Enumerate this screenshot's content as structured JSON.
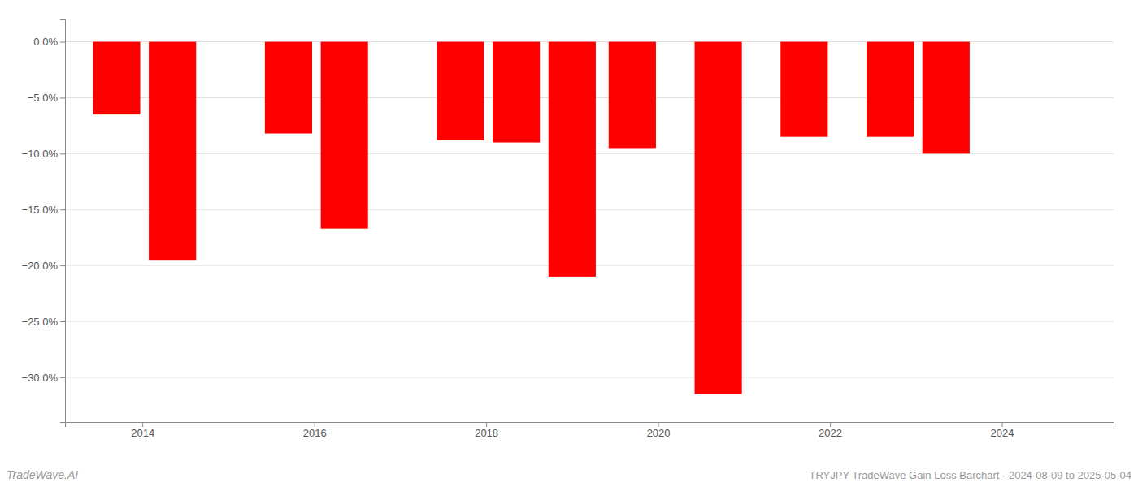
{
  "chart_data": {
    "type": "bar",
    "x": [
      2013.7,
      2014.35,
      2015.7,
      2016.35,
      2017.7,
      2018.35,
      2019.0,
      2019.7,
      2020.7,
      2021.7,
      2022.7,
      2023.35
    ],
    "values": [
      -6.5,
      -19.5,
      -8.2,
      -16.7,
      -8.8,
      -9.0,
      -21.0,
      -9.5,
      -31.5,
      -8.5,
      -8.5,
      -10.0
    ],
    "color": "#ff0000",
    "xlim": [
      2013.1,
      2025.3
    ],
    "xticks": [
      2014,
      2016,
      2018,
      2020,
      2022,
      2024
    ],
    "ylim": [
      -34,
      2.0
    ],
    "yticks": [
      {
        "value": 0.0,
        "label": "0.0%"
      },
      {
        "value": -5.0,
        "label": "−5.0%"
      },
      {
        "value": -10.0,
        "label": "−10.0%"
      },
      {
        "value": -15.0,
        "label": "−15.0%"
      },
      {
        "value": -20.0,
        "label": "−20.0%"
      },
      {
        "value": -25.0,
        "label": "−25.0%"
      },
      {
        "value": -30.0,
        "label": "−30.0%"
      }
    ],
    "grid": true,
    "annotations": [
      "TradeWave.AI",
      "TRYJPY TradeWave Gain Loss Barchart - 2024-08-09 to 2025-05-04"
    ]
  }
}
